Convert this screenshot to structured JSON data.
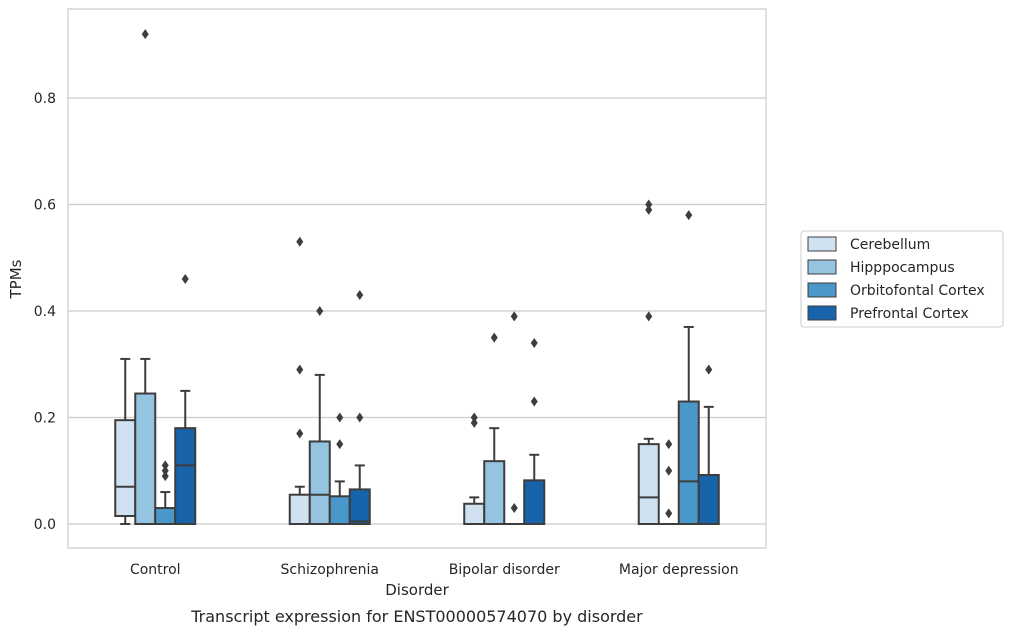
{
  "caption": "Transcript expression for ENST00000574070 by disorder",
  "chart_data": {
    "type": "box",
    "xlabel": "Disorder",
    "ylabel": "TPMs",
    "ylim": [
      -0.045,
      0.97
    ],
    "yticks": [
      0.0,
      0.2,
      0.4,
      0.6,
      0.8
    ],
    "ytick_labels": [
      "0.0",
      "0.2",
      "0.4",
      "0.6",
      "0.8"
    ],
    "grid": "horizontal",
    "legend_position": "right",
    "categories": [
      "Control",
      "Schizophrenia",
      "Bipolar disorder",
      "Major depression"
    ],
    "series": [
      {
        "name": "Cerebellum",
        "color": "#d0e1f2",
        "boxes": [
          {
            "whislo": 0.0,
            "q1": 0.015,
            "med": 0.07,
            "q3": 0.195,
            "whishi": 0.31,
            "fliers": []
          },
          {
            "whislo": 0.0,
            "q1": 0.0,
            "med": 0.0,
            "q3": 0.055,
            "whishi": 0.07,
            "fliers": [
              0.17,
              0.29,
              0.53
            ]
          },
          {
            "whislo": 0.0,
            "q1": 0.0,
            "med": 0.0,
            "q3": 0.038,
            "whishi": 0.05,
            "fliers": [
              0.19,
              0.2
            ]
          },
          {
            "whislo": 0.0,
            "q1": 0.0,
            "med": 0.05,
            "q3": 0.15,
            "whishi": 0.16,
            "fliers": [
              0.39,
              0.59,
              0.6
            ]
          }
        ]
      },
      {
        "name": "Hipppocampus",
        "color": "#94c4df",
        "boxes": [
          {
            "whislo": 0.0,
            "q1": 0.0,
            "med": 0.0,
            "q3": 0.245,
            "whishi": 0.31,
            "fliers": [
              0.92
            ]
          },
          {
            "whislo": 0.0,
            "q1": 0.0,
            "med": 0.055,
            "q3": 0.155,
            "whishi": 0.28,
            "fliers": [
              0.4
            ]
          },
          {
            "whislo": 0.0,
            "q1": 0.0,
            "med": 0.0,
            "q3": 0.118,
            "whishi": 0.18,
            "fliers": [
              0.35
            ]
          },
          {
            "whislo": 0.0,
            "q1": 0.0,
            "med": 0.0,
            "q3": 0.0,
            "whishi": 0.0,
            "fliers": [
              0.02,
              0.1,
              0.15
            ]
          }
        ]
      },
      {
        "name": "Orbitofontal Cortex",
        "color": "#4a98c9",
        "boxes": [
          {
            "whislo": 0.0,
            "q1": 0.0,
            "med": 0.0,
            "q3": 0.03,
            "whishi": 0.06,
            "fliers": [
              0.09,
              0.1,
              0.11
            ]
          },
          {
            "whislo": 0.0,
            "q1": 0.0,
            "med": 0.0,
            "q3": 0.052,
            "whishi": 0.08,
            "fliers": [
              0.15,
              0.2
            ]
          },
          {
            "whislo": 0.0,
            "q1": 0.0,
            "med": 0.0,
            "q3": 0.0,
            "whishi": 0.0,
            "fliers": [
              0.03,
              0.39
            ]
          },
          {
            "whislo": 0.0,
            "q1": 0.0,
            "med": 0.08,
            "q3": 0.23,
            "whishi": 0.37,
            "fliers": [
              0.58
            ]
          }
        ]
      },
      {
        "name": "Prefrontal Cortex",
        "color": "#1764ab",
        "boxes": [
          {
            "whislo": 0.0,
            "q1": 0.0,
            "med": 0.11,
            "q3": 0.18,
            "whishi": 0.25,
            "fliers": [
              0.46
            ]
          },
          {
            "whislo": 0.0,
            "q1": 0.0,
            "med": 0.005,
            "q3": 0.065,
            "whishi": 0.11,
            "fliers": [
              0.2,
              0.43
            ]
          },
          {
            "whislo": 0.0,
            "q1": 0.0,
            "med": 0.0,
            "q3": 0.082,
            "whishi": 0.13,
            "fliers": [
              0.23,
              0.34
            ]
          },
          {
            "whislo": 0.0,
            "q1": 0.0,
            "med": 0.0,
            "q3": 0.092,
            "whishi": 0.22,
            "fliers": [
              0.29
            ]
          }
        ]
      }
    ]
  }
}
